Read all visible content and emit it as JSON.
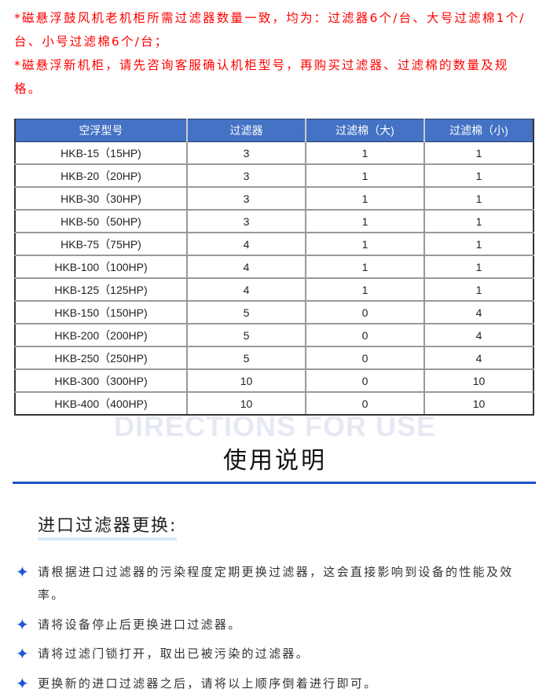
{
  "notes": [
    "*磁悬浮鼓风机老机柜所需过滤器数量一致，均为：过滤器6个/台、大号过滤棉1个/台、小号过滤棉6个/台；",
    "*磁悬浮新机柜，请先咨询客服确认机柜型号，再购买过滤器、过滤棉的数量及规格。"
  ],
  "table": {
    "headers": [
      "空浮型号",
      "过滤器",
      "过滤棉（大)",
      "过滤棉（小)"
    ],
    "rows": [
      [
        "HKB-15（15HP)",
        "3",
        "1",
        "1"
      ],
      [
        "HKB-20（20HP)",
        "3",
        "1",
        "1"
      ],
      [
        "HKB-30（30HP)",
        "3",
        "1",
        "1"
      ],
      [
        "HKB-50（50HP)",
        "3",
        "1",
        "1"
      ],
      [
        "HKB-75（75HP)",
        "4",
        "1",
        "1"
      ],
      [
        "HKB-100（100HP)",
        "4",
        "1",
        "1"
      ],
      [
        "HKB-125（125HP)",
        "4",
        "1",
        "1"
      ],
      [
        "HKB-150（150HP)",
        "5",
        "0",
        "4"
      ],
      [
        "HKB-200（200HP)",
        "5",
        "0",
        "4"
      ],
      [
        "HKB-250（250HP)",
        "5",
        "0",
        "4"
      ],
      [
        "HKB-300（300HP)",
        "10",
        "0",
        "10"
      ],
      [
        "HKB-400（400HP)",
        "10",
        "0",
        "10"
      ]
    ]
  },
  "section": {
    "watermark": "DIRECTIONS FOR USE",
    "title": "使用说明",
    "subtitle": "进口过滤器更换:"
  },
  "steps": [
    "请根据进口过滤器的污染程度定期更换过滤器，这会直接影响到设备的性能及效率。",
    "请将设备停止后更换进口过滤器。",
    "请将过滤门锁打开，取出已被污染的过滤器。",
    "更换新的进口过滤器之后，请将以上顺序倒着进行即可。"
  ],
  "colors": {
    "note": "#ff0000",
    "header": "#4472c4",
    "accent": "#1f4fcc"
  },
  "icons": {
    "bullet": "four-point-star-icon"
  }
}
